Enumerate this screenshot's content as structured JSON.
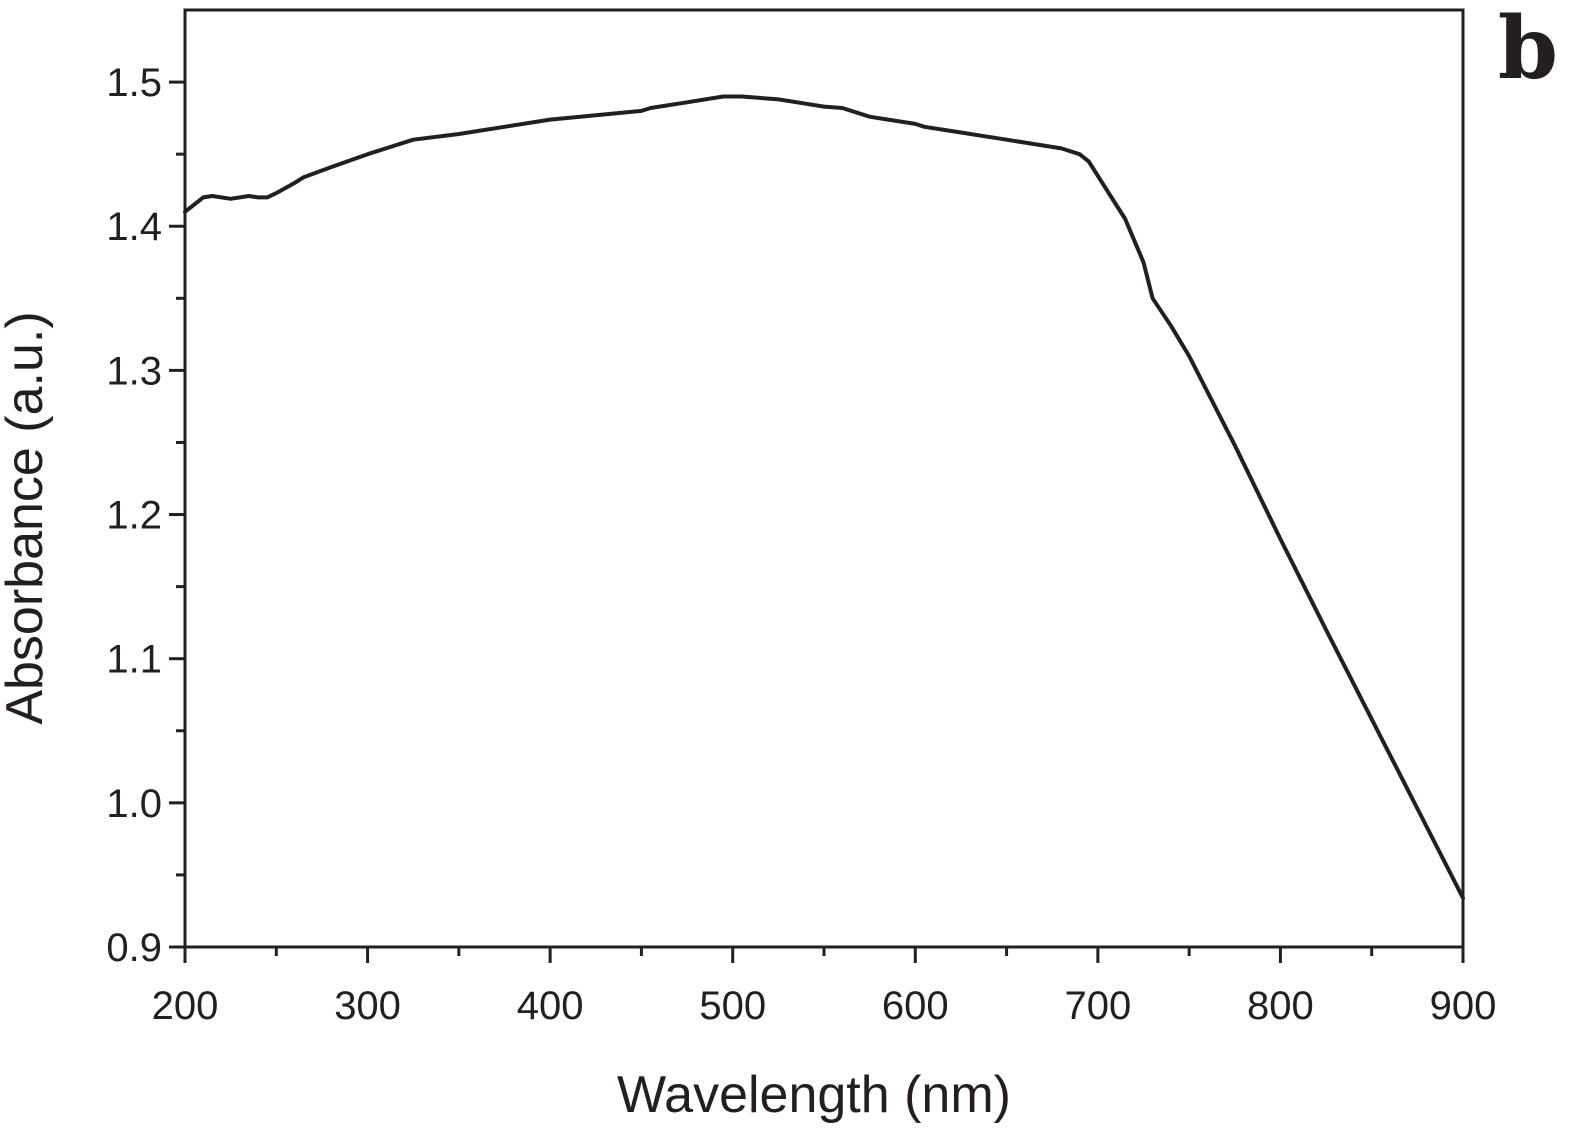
{
  "chart_data": {
    "type": "line",
    "panel_label": "b",
    "xlabel": "Wavelength (nm)",
    "ylabel": "Absorbance (a.u.)",
    "xlim": [
      200,
      900
    ],
    "ylim": [
      0.9,
      1.55
    ],
    "x_ticks": [
      200,
      300,
      400,
      500,
      600,
      700,
      800,
      900
    ],
    "x_tick_labels": [
      "200",
      "300",
      "400",
      "500",
      "600",
      "700",
      "800",
      "900"
    ],
    "y_ticks": [
      0.9,
      1.0,
      1.1,
      1.2,
      1.3,
      1.4,
      1.5
    ],
    "y_tick_labels": [
      "0.9",
      "1.0",
      "1.1",
      "1.2",
      "1.3",
      "1.4",
      "1.5"
    ],
    "x_minor_step": 50,
    "y_minor_step": 0.05,
    "grid": false,
    "line_color": "#231f20",
    "series": [
      {
        "name": "Absorbance",
        "x": [
          200,
          210,
          215,
          225,
          235,
          240,
          245,
          250,
          260,
          265,
          280,
          300,
          325,
          350,
          375,
          400,
          425,
          450,
          455,
          475,
          490,
          495,
          505,
          525,
          540,
          550,
          560,
          575,
          600,
          605,
          625,
          650,
          680,
          690,
          695,
          715,
          725,
          730,
          740,
          750,
          775,
          800,
          825,
          850,
          875,
          900
        ],
        "y": [
          1.41,
          1.42,
          1.421,
          1.419,
          1.421,
          1.42,
          1.42,
          1.423,
          1.43,
          1.434,
          1.441,
          1.45,
          1.46,
          1.464,
          1.469,
          1.474,
          1.477,
          1.48,
          1.482,
          1.486,
          1.489,
          1.49,
          1.49,
          1.488,
          1.485,
          1.483,
          1.482,
          1.476,
          1.471,
          1.469,
          1.465,
          1.46,
          1.454,
          1.45,
          1.445,
          1.405,
          1.375,
          1.35,
          1.331,
          1.31,
          1.248,
          1.183,
          1.12,
          1.058,
          0.996,
          0.934
        ]
      }
    ]
  }
}
